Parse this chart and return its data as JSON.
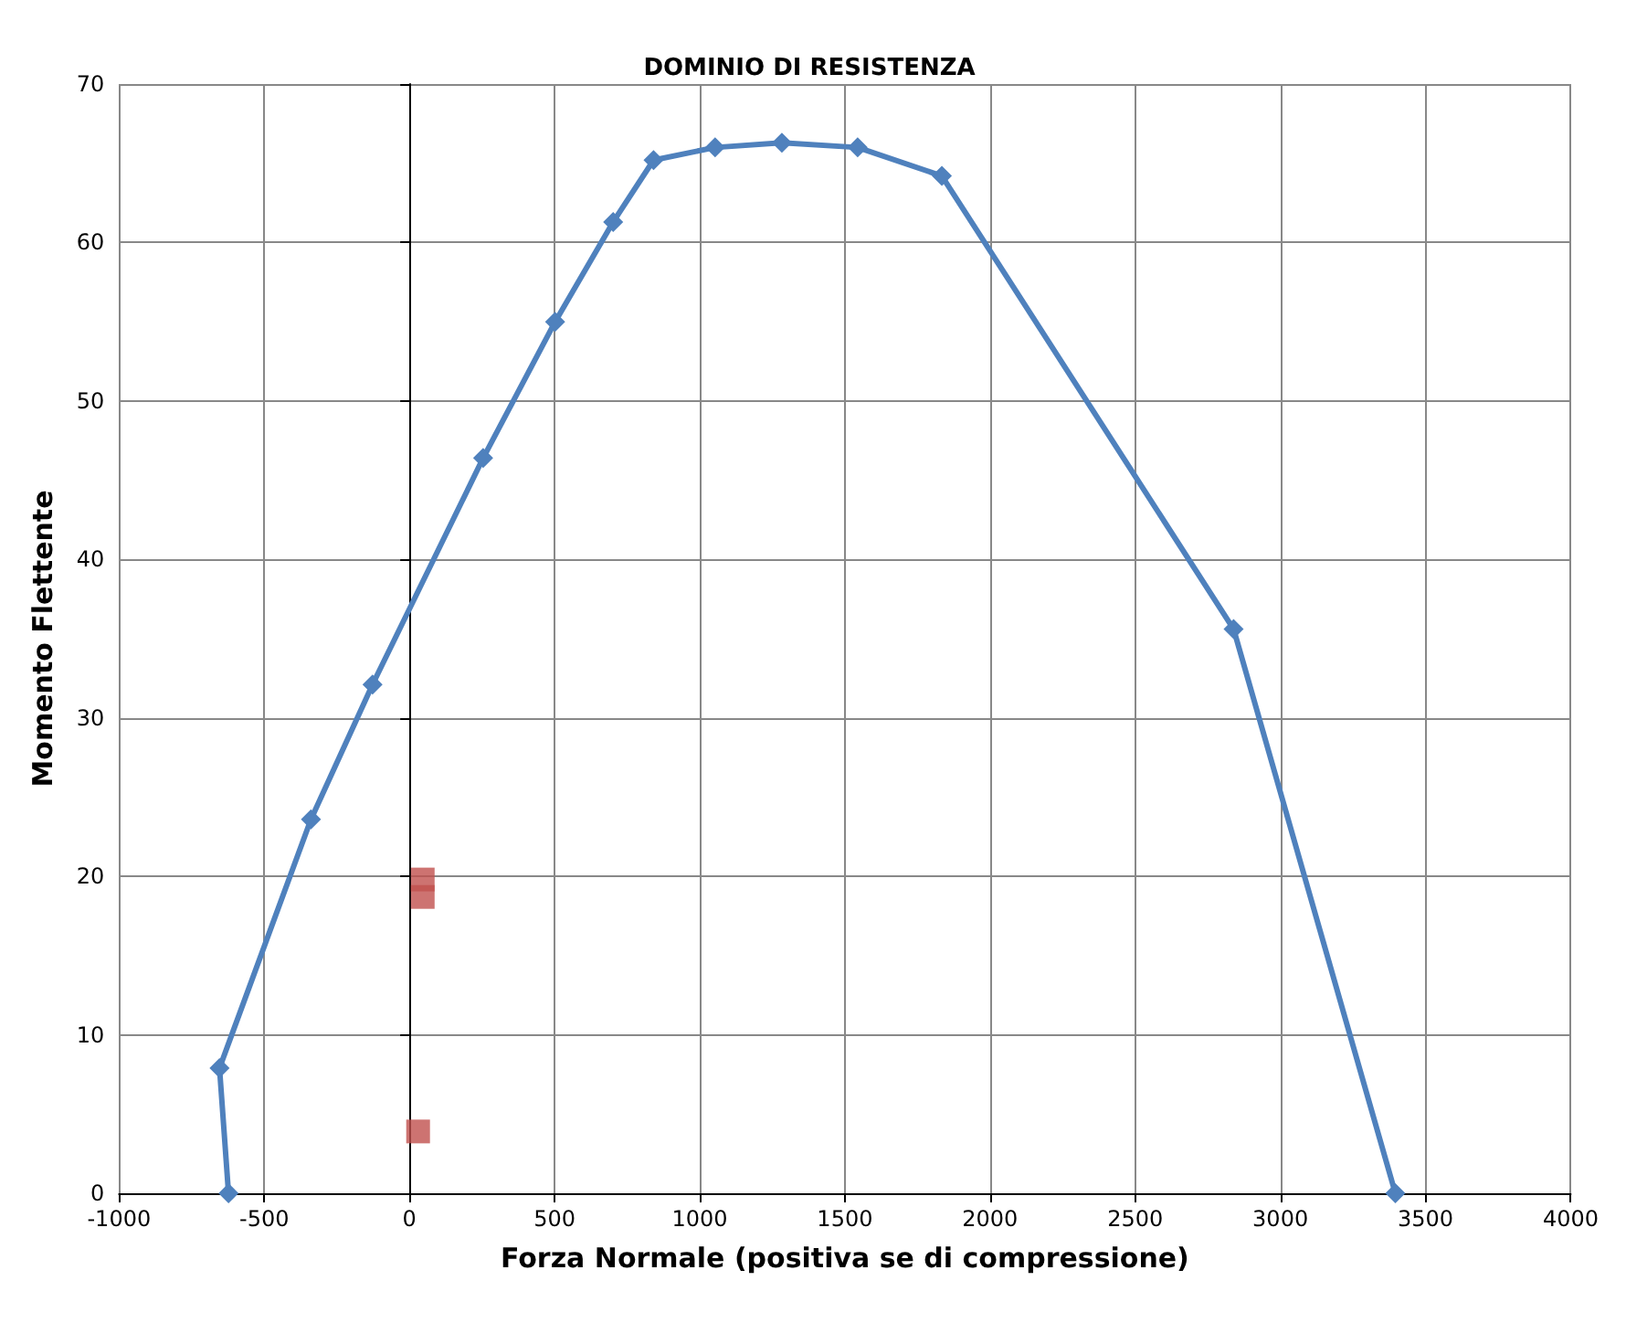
{
  "chart_data": {
    "type": "line",
    "title": "DOMINIO DI RESISTENZA",
    "xlabel": "Forza Normale (positiva se di compressione)",
    "ylabel": "Momento Flettente",
    "xlim": [
      -1000,
      4000
    ],
    "xticks": [
      -1000,
      -500,
      0,
      500,
      1000,
      1500,
      2000,
      2500,
      3000,
      3500,
      4000
    ],
    "ylim": [
      0,
      70
    ],
    "yticks": [
      0,
      10,
      20,
      30,
      40,
      50,
      60,
      70
    ],
    "grid": true,
    "series": [
      {
        "color": "#4f81bd",
        "marker": "diamond",
        "line_style": "solid",
        "x": [
          -623,
          -654,
          -339,
          -127,
          254,
          502,
          702,
          841,
          1053,
          1283,
          1544,
          1834,
          2839,
          3396
        ],
        "values": [
          0,
          7.9,
          23.6,
          32.1,
          46.4,
          55.0,
          61.3,
          65.2,
          66.0,
          66.3,
          66.0,
          64.2,
          35.6,
          0
        ]
      },
      {
        "type": "scatter",
        "color": "#c0504d",
        "marker": "square",
        "x": [
          46,
          46,
          30
        ],
        "values": [
          19.8,
          18.7,
          3.9
        ]
      }
    ]
  }
}
